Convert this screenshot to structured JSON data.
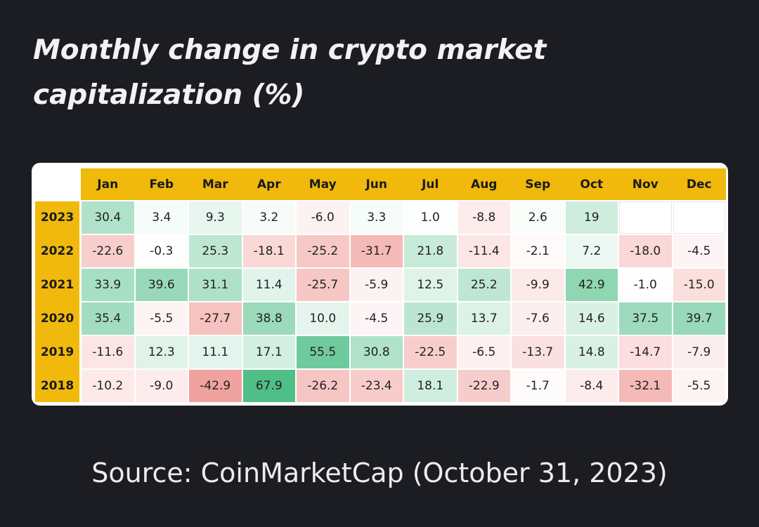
{
  "title": "Monthly change in crypto market capitalization (%)",
  "table": {
    "columns": [
      "Jan",
      "Feb",
      "Mar",
      "Apr",
      "May",
      "Jun",
      "Jul",
      "Aug",
      "Sep",
      "Oct",
      "Nov",
      "Dec"
    ],
    "rows": [
      {
        "year": "2023",
        "values": [
          "30.4",
          "3.4",
          "9.3",
          "3.2",
          "-6.0",
          "3.3",
          "1.0",
          "-8.8",
          "2.6",
          "19"
        ]
      },
      {
        "year": "2022",
        "values": [
          "-22.6",
          "-0.3",
          "25.3",
          "-18.1",
          "-25.2",
          "-31.7",
          "21.8",
          "-11.4",
          "-2.1",
          "7.2",
          "-18.0",
          "-4.5"
        ]
      },
      {
        "year": "2021",
        "values": [
          "33.9",
          "39.6",
          "31.1",
          "11.4",
          "-25.7",
          "-5.9",
          "12.5",
          "25.2",
          "-9.9",
          "42.9",
          "-1.0",
          "-15.0"
        ]
      },
      {
        "year": "2020",
        "values": [
          "35.4",
          "-5.5",
          "-27.7",
          "38.8",
          "10.0",
          "-4.5",
          "25.9",
          "13.7",
          "-7.6",
          "14.6",
          "37.5",
          "39.7"
        ]
      },
      {
        "year": "2019",
        "values": [
          "-11.6",
          "12.3",
          "11.1",
          "17.1",
          "55.5",
          "30.8",
          "-22.5",
          "-6.5",
          "-13.7",
          "14.8",
          "-14.7",
          "-7.9"
        ]
      },
      {
        "year": "2018",
        "values": [
          "-10.2",
          "-9.0",
          "-42.9",
          "67.9",
          "-26.2",
          "-23.4",
          "18.1",
          "-22.9",
          "-1.7",
          "-8.4",
          "-32.1",
          "-5.5"
        ]
      }
    ]
  },
  "source": "Source: CoinMarketCap (October 31, 2023)"
}
